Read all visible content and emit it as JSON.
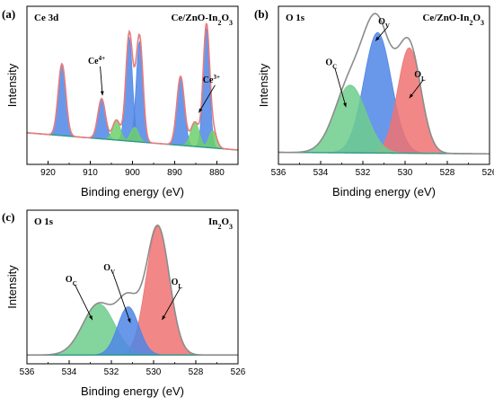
{
  "chart_data": [
    {
      "panel": "(a)",
      "type": "area",
      "spectrum_label": "Ce 3d",
      "sample_label": "Ce/ZnO-In2O3",
      "xlabel": "Binding energy (eV)",
      "ylabel": "Intensity",
      "xlim": [
        925,
        875
      ],
      "x_ticks": [
        920,
        910,
        900,
        890,
        880
      ],
      "ylim": [
        0,
        1.1
      ],
      "background": {
        "start": 0.22,
        "end": 0.1
      },
      "series": [
        {
          "name": "Ce4+",
          "color": "#4f86e6",
          "peaks": [
            {
              "center": 916.7,
              "height": 0.5,
              "width": 0.9
            },
            {
              "center": 907.3,
              "height": 0.28,
              "width": 0.9
            },
            {
              "center": 900.8,
              "height": 0.72,
              "width": 0.8
            },
            {
              "center": 898.3,
              "height": 0.7,
              "width": 0.8
            },
            {
              "center": 888.6,
              "height": 0.48,
              "width": 0.9
            },
            {
              "center": 882.5,
              "height": 0.83,
              "width": 0.75
            }
          ]
        },
        {
          "name": "Ce3+",
          "color": "#6ed06b",
          "peaks": [
            {
              "center": 903.8,
              "height": 0.14,
              "width": 0.9
            },
            {
              "center": 899.5,
              "height": 0.1,
              "width": 0.9
            },
            {
              "center": 885.2,
              "height": 0.17,
              "width": 1.0
            },
            {
              "center": 881.0,
              "height": 0.12,
              "width": 0.9
            }
          ]
        }
      ],
      "envelope_color": "#e87b7b",
      "annotations": [
        {
          "text": "Ce",
          "sup": "4+",
          "x": 908.5,
          "y": 0.7,
          "arrow_to": [
            907.1,
            0.48
          ]
        },
        {
          "text": "Ce",
          "sup": "3+",
          "x": 881.3,
          "y": 0.57,
          "arrow_to": [
            884.3,
            0.36
          ]
        }
      ]
    },
    {
      "panel": "(b)",
      "type": "area",
      "spectrum_label": "O 1s",
      "sample_label": "Ce/ZnO-In2O3",
      "xlabel": "Binding energy (eV)",
      "ylabel": "Intensity",
      "xlim": [
        536,
        526
      ],
      "x_ticks": [
        536,
        534,
        532,
        530,
        528,
        526
      ],
      "ylim": [
        0,
        1.05
      ],
      "background": {
        "start": 0.08,
        "end": 0.07
      },
      "series": [
        {
          "name": "Oc",
          "color": "#6fcd8d",
          "center": 532.6,
          "height": 0.45,
          "width": 0.75
        },
        {
          "name": "Ov",
          "color": "#4f86e6",
          "center": 531.3,
          "height": 0.8,
          "width": 0.65
        },
        {
          "name": "OL",
          "color": "#f07272",
          "center": 529.8,
          "height": 0.7,
          "width": 0.55
        }
      ],
      "envelope_color": "#8c8c8c",
      "annotations": [
        {
          "text": "O",
          "sub": "C",
          "x": 533.5,
          "y": 0.66,
          "arrow_to": [
            532.8,
            0.38
          ]
        },
        {
          "text": "O",
          "sub": "V",
          "x": 531.0,
          "y": 0.93,
          "arrow_to": [
            531.4,
            0.82
          ]
        },
        {
          "text": "O",
          "sub": "L",
          "x": 529.3,
          "y": 0.58,
          "arrow_to": [
            529.8,
            0.44
          ]
        }
      ]
    },
    {
      "panel": "(c)",
      "type": "area",
      "spectrum_label": "O 1s",
      "sample_label": "In2O3",
      "xlabel": "Binding energy (eV)",
      "ylabel": "Intensity",
      "xlim": [
        536,
        526
      ],
      "x_ticks": [
        536,
        534,
        532,
        530,
        528,
        526
      ],
      "ylim": [
        0,
        1.05
      ],
      "background": {
        "start": 0.06,
        "end": 0.06
      },
      "series": [
        {
          "name": "Oc",
          "color": "#6fcd8d",
          "center": 532.6,
          "height": 0.35,
          "width": 0.75
        },
        {
          "name": "Ov",
          "color": "#4f86e6",
          "center": 531.2,
          "height": 0.33,
          "width": 0.5
        },
        {
          "name": "OL",
          "color": "#f07272",
          "center": 529.8,
          "height": 0.88,
          "width": 0.55
        }
      ],
      "envelope_color": "#8c8c8c",
      "annotations": [
        {
          "text": "O",
          "sub": "C",
          "x": 533.9,
          "y": 0.56,
          "arrow_to": [
            532.9,
            0.3
          ]
        },
        {
          "text": "O",
          "sub": "V",
          "x": 532.1,
          "y": 0.64,
          "arrow_to": [
            531.1,
            0.28
          ]
        },
        {
          "text": "O",
          "sub": "L",
          "x": 528.9,
          "y": 0.54,
          "arrow_to": [
            529.6,
            0.3
          ]
        }
      ]
    }
  ]
}
